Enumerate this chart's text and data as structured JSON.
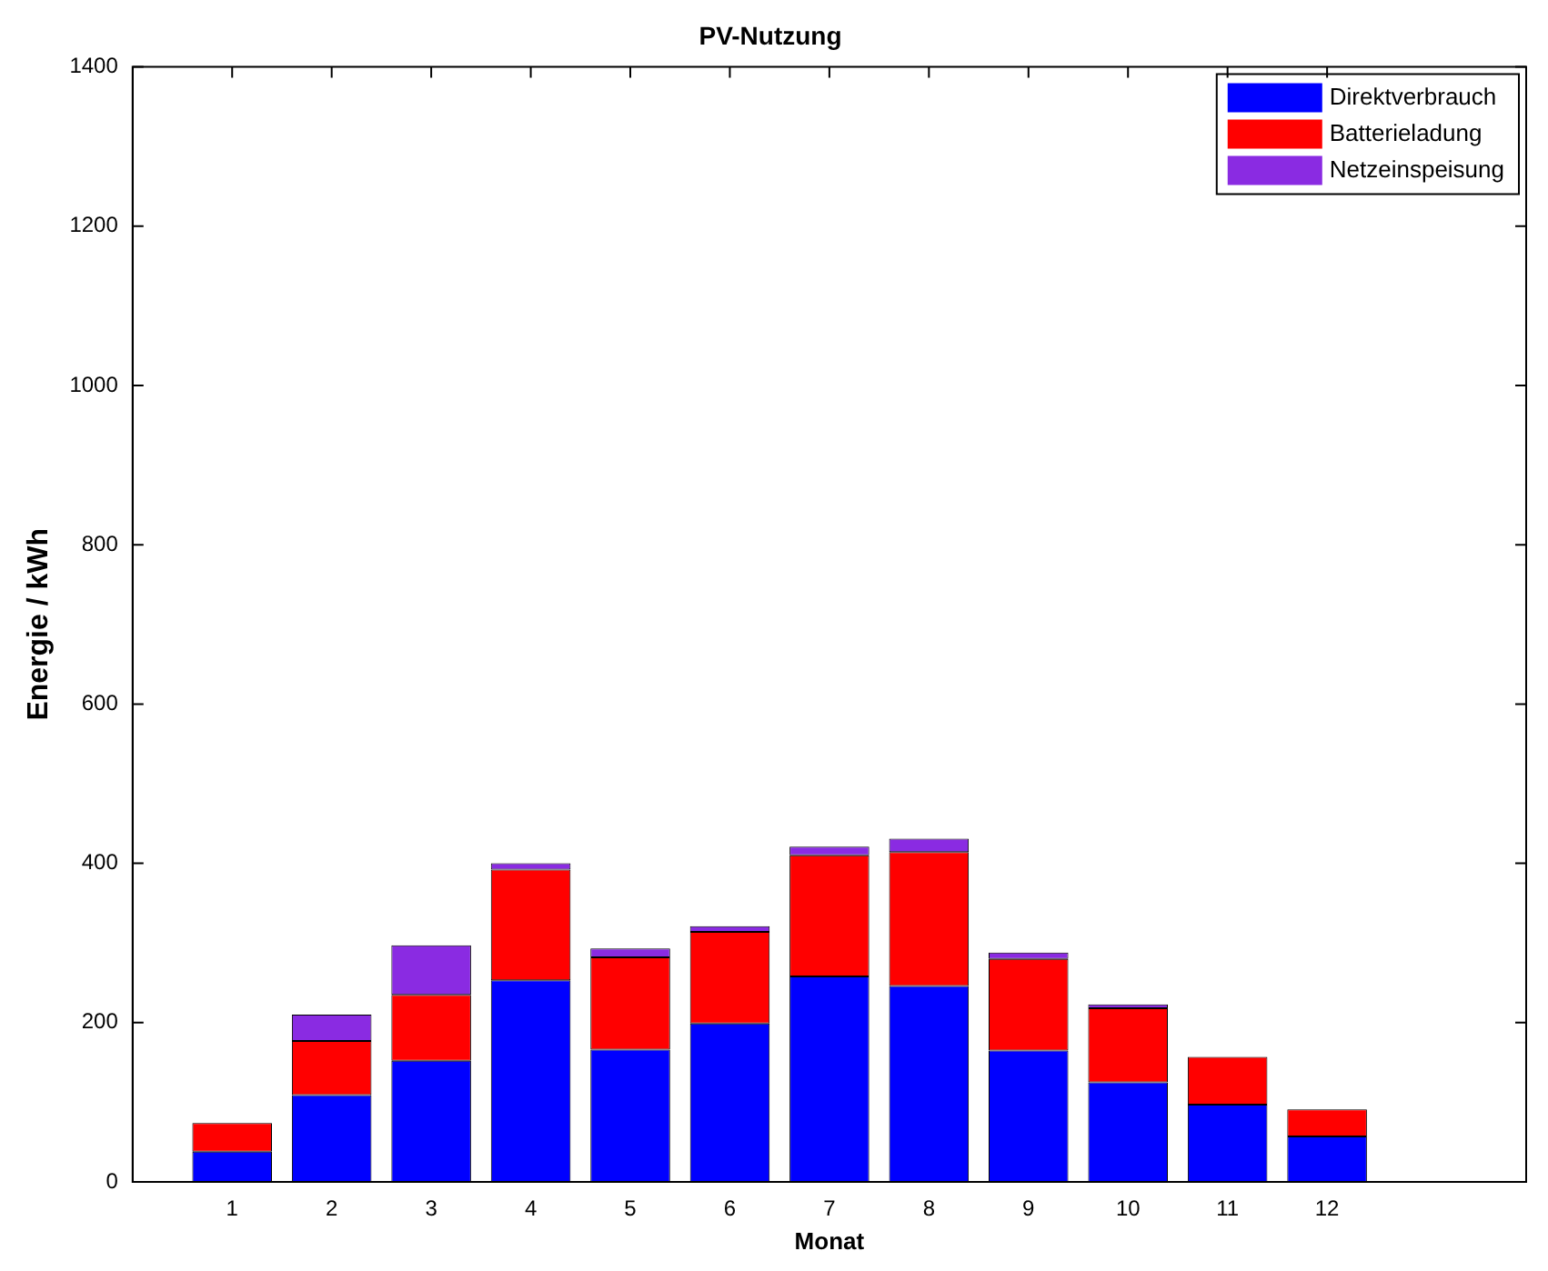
{
  "chart_data": {
    "type": "bar",
    "title": "PV-Nutzung",
    "xlabel": "Monat",
    "ylabel": "Energie / kWh",
    "stacked": true,
    "x": [
      1,
      2,
      3,
      4,
      5,
      6,
      7,
      8,
      9,
      10,
      11,
      12
    ],
    "xlim": [
      0,
      14
    ],
    "xticks": [
      1,
      2,
      3,
      4,
      5,
      6,
      7,
      8,
      9,
      10,
      11,
      12
    ],
    "ylim": [
      0,
      1400
    ],
    "yticks": [
      0,
      200,
      400,
      600,
      800,
      1000,
      1200,
      1400
    ],
    "grid": false,
    "legend": "top right",
    "series": [
      {
        "name": "Direktverbrauch",
        "color": "#0000ff",
        "values": [
          38,
          109,
          152,
          253,
          166,
          199,
          258,
          246,
          165,
          125,
          97,
          57
        ]
      },
      {
        "name": "Batterieladung",
        "color": "#ff0000",
        "values": [
          36,
          68,
          83,
          139,
          116,
          115,
          152,
          168,
          115,
          93,
          60,
          34
        ]
      },
      {
        "name": "Netzeinspeisung",
        "color": "#8a2be2",
        "values": [
          0,
          33,
          62,
          8,
          11,
          7,
          11,
          17,
          8,
          5,
          0,
          0
        ]
      }
    ]
  }
}
